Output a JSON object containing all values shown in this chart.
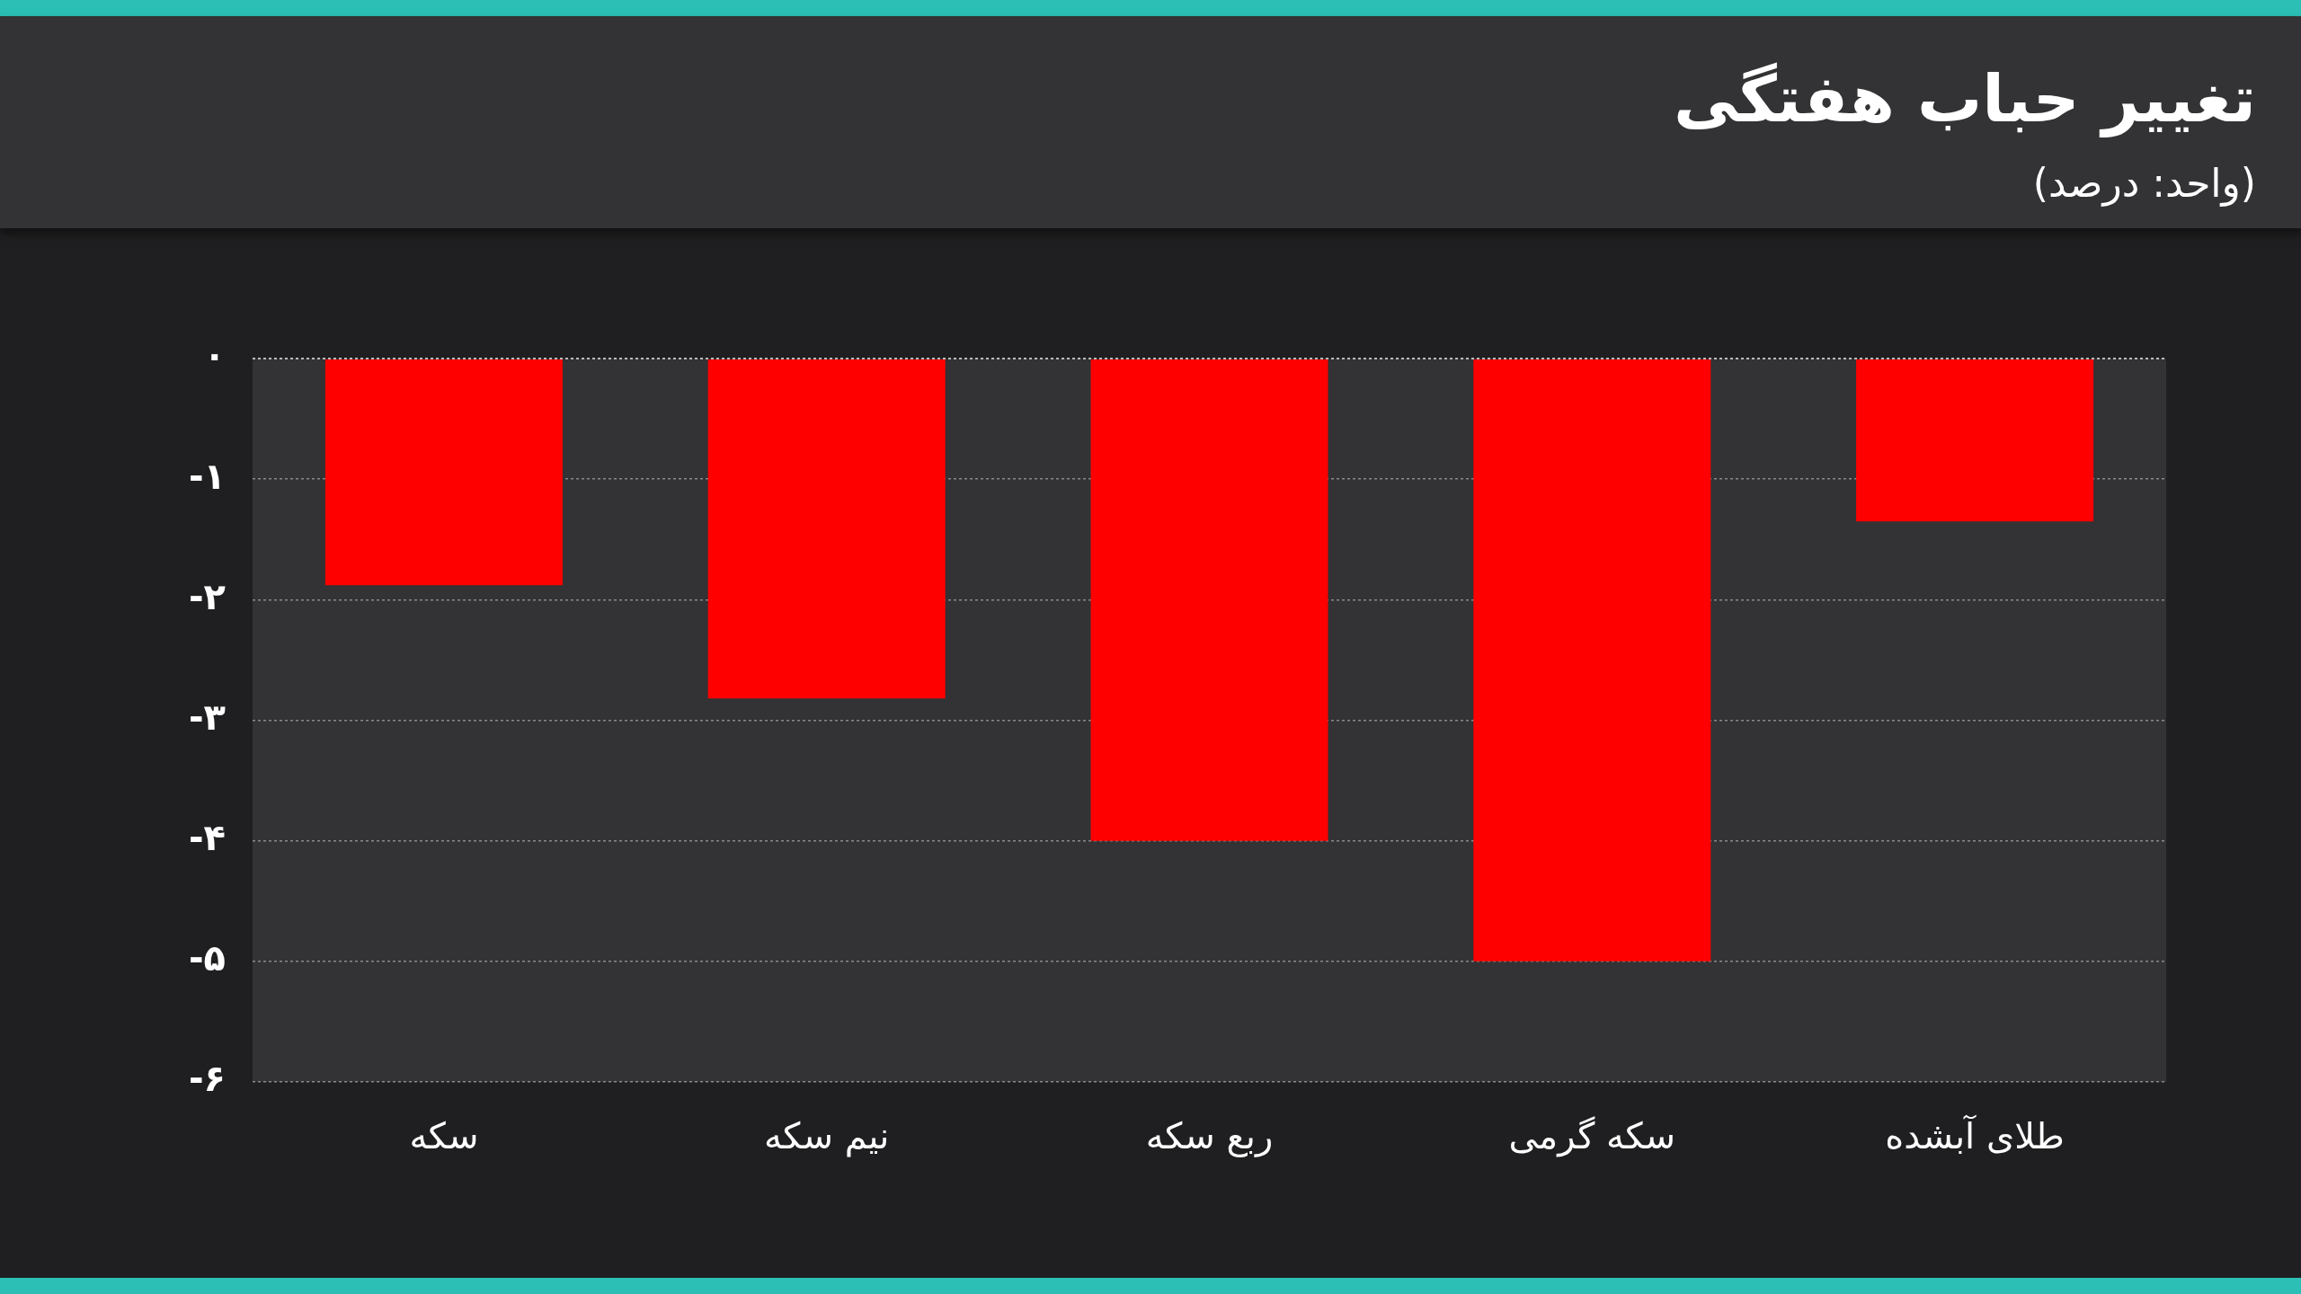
{
  "chart_data": {
    "type": "bar",
    "title": "تغییر حباب هفتگی",
    "subtitle": "(واحد: درصد)",
    "categories": [
      "سکه",
      "نیم سکه",
      "ربع سکه",
      "سکه گرمی",
      "طلای آبشده"
    ],
    "values": [
      -1.88,
      -2.82,
      -4.0,
      -5.0,
      -1.35
    ],
    "color": "#ff0000",
    "ylim": [
      -6,
      0
    ],
    "yticks": [
      {
        "value": 0,
        "label": "۰"
      },
      {
        "value": -1,
        "label": "-۱"
      },
      {
        "value": -2,
        "label": "-۲"
      },
      {
        "value": -3,
        "label": "-۳"
      },
      {
        "value": -4,
        "label": "-۴"
      },
      {
        "value": -5,
        "label": "-۵"
      },
      {
        "value": -6,
        "label": "-۶"
      }
    ],
    "grid": "y",
    "legend": false
  }
}
